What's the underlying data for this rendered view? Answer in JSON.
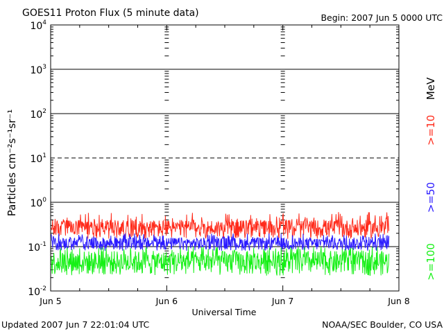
{
  "header": {
    "title": "GOES11 Proton Flux (5 minute data)",
    "begin": "Begin: 2007 Jun 5 0000 UTC"
  },
  "footer": {
    "updated": "Updated 2007 Jun  7 22:01:04 UTC",
    "source": "NOAA/SEC Boulder, CO USA"
  },
  "colors": {
    "ge10": "#ff2a1a",
    "ge50": "#2a1aff",
    "ge100": "#16f016",
    "frame": "#000000"
  },
  "chart_data": {
    "type": "line",
    "xlabel": "Universal Time",
    "ylabel": "Particles cm⁻²s⁻¹sr⁻¹",
    "yscale": "log",
    "ylim": [
      0.01,
      10000
    ],
    "xlim": [
      "2007-06-05 00:00",
      "2007-06-08 00:00"
    ],
    "x_ticks": [
      "Jun 5",
      "Jun 6",
      "Jun 7",
      "Jun 8"
    ],
    "y_ticks": [
      {
        "base": "10",
        "exp": "-2"
      },
      {
        "base": "10",
        "exp": "-1"
      },
      {
        "base": "10",
        "exp": "0"
      },
      {
        "base": "10",
        "exp": "1"
      },
      {
        "base": "10",
        "exp": "2"
      },
      {
        "base": "10",
        "exp": "3"
      },
      {
        "base": "10",
        "exp": "4"
      }
    ],
    "unit_label": "MeV",
    "data_end": "2007-06-07 22:00",
    "series": [
      {
        "name": ">=10",
        "color": "#ff2a1a",
        "typical_min": 0.15,
        "typical_max": 0.4,
        "peak": 0.6
      },
      {
        "name": ">=50",
        "color": "#2a1aff",
        "typical_min": 0.08,
        "typical_max": 0.16,
        "peak": 0.2
      },
      {
        "name": ">=100",
        "color": "#16f016",
        "typical_min": 0.022,
        "typical_max": 0.08,
        "peak": 0.1
      }
    ]
  }
}
